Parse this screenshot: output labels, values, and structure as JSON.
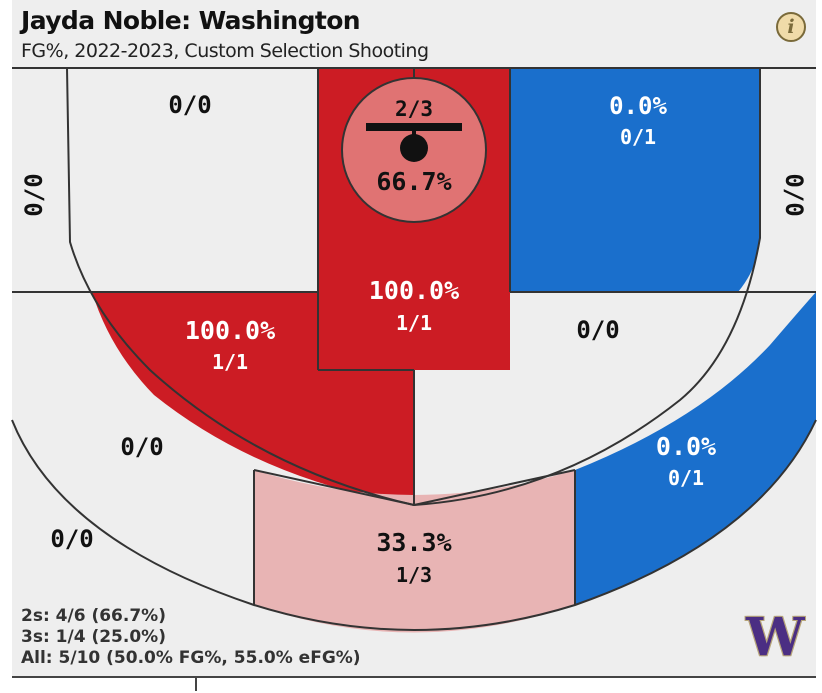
{
  "header": {
    "title": "Jayda Noble: Washington",
    "subtitle": "FG%, 2022-2023, Custom Selection Shooting",
    "info_icon": "info-icon"
  },
  "chart_data": {
    "type": "shot-chart",
    "title": "Jayda Noble: Washington",
    "subtitle": "FG%, 2022-2023, Custom Selection Shooting",
    "zones": [
      {
        "id": "restricted",
        "pct": "66.7%",
        "made": 2,
        "att": 3,
        "fga": "2/3",
        "color": "#e07373"
      },
      {
        "id": "paint",
        "pct": "100.0%",
        "made": 1,
        "att": 1,
        "fga": "1/1",
        "color": "#cc1c24"
      },
      {
        "id": "mid-left-baseline",
        "pct": "",
        "made": 0,
        "att": 0,
        "fga": "0/0",
        "color": "#eeeeee"
      },
      {
        "id": "mid-right-baseline",
        "pct": "0.0%",
        "made": 0,
        "att": 1,
        "fga": "0/1",
        "color": "#1a6fcc"
      },
      {
        "id": "mid-left-wing",
        "pct": "100.0%",
        "made": 1,
        "att": 1,
        "fga": "1/1",
        "color": "#cc1c24"
      },
      {
        "id": "mid-right-wing",
        "pct": "",
        "made": 0,
        "att": 0,
        "fga": "0/0",
        "color": "#eeeeee"
      },
      {
        "id": "corner3-left",
        "pct": "",
        "made": 0,
        "att": 0,
        "fga": "0/0",
        "color": "#eeeeee"
      },
      {
        "id": "corner3-right",
        "pct": "",
        "made": 0,
        "att": 0,
        "fga": "0/0",
        "color": "#eeeeee"
      },
      {
        "id": "wing3-left",
        "pct": "",
        "made": 0,
        "att": 0,
        "fga": "0/0",
        "color": "#eeeeee"
      },
      {
        "id": "wing3-right",
        "pct": "0.0%",
        "made": 0,
        "att": 1,
        "fga": "0/1",
        "color": "#1a6fcc"
      },
      {
        "id": "top3",
        "pct": "33.3%",
        "made": 1,
        "att": 3,
        "fga": "1/3",
        "color": "#e8b4b4"
      },
      {
        "id": "deep-left",
        "pct": "",
        "made": 0,
        "att": 0,
        "fga": "0/0",
        "color": "#eeeeee"
      }
    ]
  },
  "stats": {
    "twos": "2s: 4/6 (66.7%)",
    "threes": "3s: 1/4 (25.0%)",
    "all": "All: 5/10 (50.0% FG%, 55.0% eFG%)"
  },
  "logo": {
    "text": "W",
    "color": "#4b2e83",
    "name": "washington-logo"
  }
}
